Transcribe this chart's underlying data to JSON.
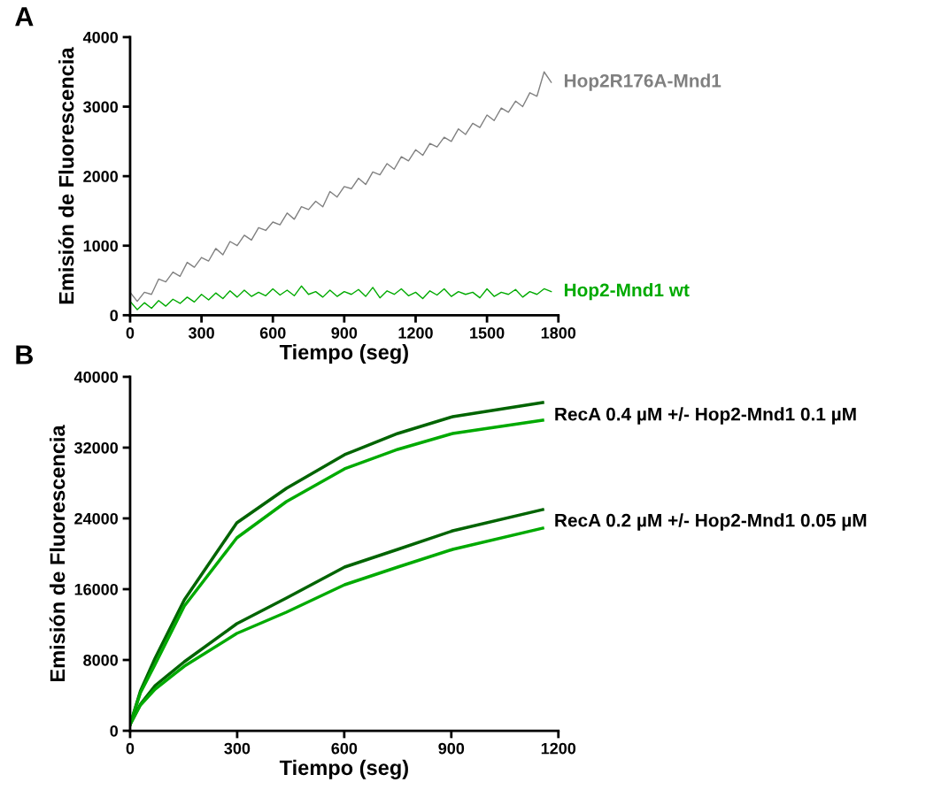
{
  "chart_data": [
    {
      "type": "line",
      "title": "A",
      "xlabel": "Tiempo (seg)",
      "ylabel": "Emisión de Fluorescencia",
      "xlim": [
        0,
        1800
      ],
      "xticks": [
        0,
        300,
        600,
        900,
        1200,
        1500,
        1800
      ],
      "ylim": [
        0,
        4000
      ],
      "yticks": [
        0,
        1000,
        2000,
        3000,
        4000
      ],
      "grid": false,
      "legend": false,
      "x": [
        0,
        30,
        60,
        90,
        120,
        150,
        180,
        210,
        240,
        270,
        300,
        330,
        360,
        390,
        420,
        450,
        480,
        510,
        540,
        570,
        600,
        630,
        660,
        690,
        720,
        750,
        780,
        810,
        840,
        870,
        900,
        930,
        960,
        990,
        1020,
        1050,
        1080,
        1110,
        1140,
        1170,
        1200,
        1230,
        1260,
        1290,
        1320,
        1350,
        1380,
        1410,
        1440,
        1470,
        1500,
        1530,
        1560,
        1590,
        1620,
        1650,
        1680,
        1710,
        1740,
        1770
      ],
      "series": [
        {
          "name": "Hop2R176A-Mnd1",
          "color": "#808080",
          "values": [
            330,
            200,
            330,
            300,
            520,
            480,
            620,
            560,
            760,
            690,
            830,
            780,
            960,
            870,
            1060,
            1000,
            1150,
            1080,
            1260,
            1220,
            1340,
            1300,
            1470,
            1380,
            1560,
            1520,
            1640,
            1560,
            1780,
            1700,
            1850,
            1820,
            1970,
            1880,
            2060,
            2020,
            2180,
            2100,
            2280,
            2220,
            2380,
            2300,
            2470,
            2420,
            2560,
            2500,
            2680,
            2600,
            2760,
            2700,
            2880,
            2800,
            2980,
            2920,
            3080,
            3000,
            3200,
            3150,
            3500,
            3350
          ]
        },
        {
          "name": "Hop2-Mnd1 wt",
          "color": "#00aa00",
          "values": [
            200,
            80,
            180,
            100,
            210,
            130,
            230,
            170,
            260,
            190,
            300,
            220,
            320,
            240,
            350,
            260,
            360,
            270,
            330,
            280,
            380,
            290,
            360,
            280,
            420,
            300,
            340,
            260,
            360,
            270,
            340,
            300,
            370,
            270,
            400,
            250,
            350,
            300,
            380,
            280,
            330,
            240,
            350,
            290,
            380,
            270,
            340,
            300,
            330,
            250,
            380,
            270,
            330,
            300,
            370,
            260,
            340,
            300,
            380,
            340
          ]
        }
      ]
    },
    {
      "type": "line",
      "title": "B",
      "xlabel": "Tiempo (seg)",
      "ylabel": "Emisión de Fluorescencia",
      "xlim": [
        0,
        1200
      ],
      "xticks": [
        0,
        300,
        600,
        900,
        1200
      ],
      "ylim": [
        0,
        40000
      ],
      "yticks": [
        0,
        8000,
        16000,
        24000,
        32000,
        40000
      ],
      "grid": false,
      "legend": false,
      "x": [
        0,
        29,
        70,
        152,
        299,
        438,
        601,
        750,
        904,
        1156
      ],
      "series": [
        {
          "color": "#006400",
          "values": [
            700,
            4500,
            8200,
            14800,
            23500,
            27400,
            31200,
            33600,
            35500,
            37100
          ]
        },
        {
          "color": "#00aa00",
          "values": [
            700,
            4300,
            7500,
            14100,
            21800,
            25900,
            29600,
            31800,
            33600,
            35100
          ]
        },
        {
          "color": "#006400",
          "values": [
            700,
            3000,
            5100,
            7800,
            12100,
            15000,
            18500,
            20500,
            22600,
            25000
          ]
        },
        {
          "color": "#00aa00",
          "values": [
            700,
            2900,
            4700,
            7300,
            11000,
            13400,
            16500,
            18500,
            20500,
            22900
          ]
        }
      ],
      "annotations": [
        "RecA 0.4 µM +/- Hop2-Mnd1 0.1 µM",
        "RecA 0.2 µM +/- Hop2-Mnd1 0.05 µM"
      ]
    }
  ]
}
